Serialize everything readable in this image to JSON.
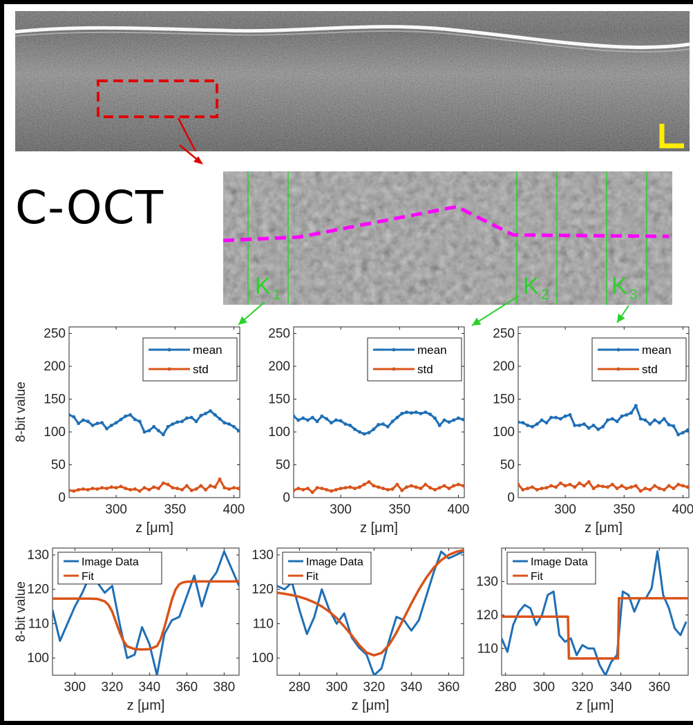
{
  "title": "C-OCT",
  "markers": [
    {
      "letter": "K",
      "sub": "1"
    },
    {
      "letter": "K",
      "sub": "2"
    },
    {
      "letter": "K",
      "sub": "3"
    }
  ],
  "colors": {
    "mean": "#1f6fb5",
    "std": "#d95319",
    "fit": "#d95319",
    "data": "#1f6fb5",
    "marker": "#2bd12b",
    "roi": "#e00000",
    "path": "#ff00ff",
    "scalebar": "#ffee00"
  },
  "chart_data": [
    {
      "type": "line",
      "xlabel": "z [μm]",
      "ylabel": "8-bit value",
      "xlim": [
        260,
        405
      ],
      "ylim": [
        0,
        260
      ],
      "xticks": [
        300,
        350,
        400
      ],
      "yticks": [
        0,
        50,
        100,
        150,
        200,
        250
      ],
      "legend": "top-right",
      "series": [
        {
          "name": "mean",
          "x": [
            260,
            264,
            268,
            272,
            276,
            280,
            284,
            288,
            292,
            296,
            300,
            304,
            308,
            312,
            316,
            320,
            324,
            328,
            332,
            336,
            340,
            344,
            348,
            352,
            356,
            360,
            364,
            368,
            372,
            376,
            380,
            384,
            388,
            392,
            396,
            400,
            404
          ],
          "y": [
            126,
            123,
            113,
            118,
            116,
            110,
            113,
            114,
            105,
            110,
            114,
            119,
            124,
            126,
            119,
            116,
            100,
            102,
            108,
            102,
            96,
            108,
            112,
            115,
            116,
            121,
            122,
            116,
            125,
            128,
            132,
            126,
            120,
            114,
            112,
            108,
            102
          ]
        },
        {
          "name": "std",
          "x": [
            260,
            264,
            268,
            272,
            276,
            280,
            284,
            288,
            292,
            296,
            300,
            304,
            308,
            312,
            316,
            320,
            324,
            328,
            332,
            336,
            340,
            344,
            348,
            352,
            356,
            360,
            364,
            368,
            372,
            376,
            380,
            384,
            388,
            392,
            396,
            400,
            404
          ],
          "y": [
            11,
            10,
            12,
            13,
            12,
            14,
            13,
            15,
            14,
            16,
            15,
            17,
            14,
            12,
            13,
            10,
            15,
            12,
            16,
            14,
            22,
            20,
            15,
            14,
            12,
            18,
            11,
            13,
            18,
            12,
            18,
            16,
            28,
            15,
            13,
            15,
            14
          ]
        }
      ]
    },
    {
      "type": "line",
      "xlabel": "z [μm]",
      "ylabel": "",
      "xlim": [
        260,
        405
      ],
      "ylim": [
        0,
        260
      ],
      "xticks": [
        300,
        350,
        400
      ],
      "yticks": [
        0,
        50,
        100,
        150,
        200,
        250
      ],
      "legend": "top-right",
      "series": [
        {
          "name": "mean",
          "x": [
            260,
            264,
            268,
            272,
            276,
            280,
            284,
            288,
            292,
            296,
            300,
            304,
            308,
            312,
            316,
            320,
            324,
            328,
            332,
            336,
            340,
            344,
            348,
            352,
            356,
            360,
            364,
            368,
            372,
            376,
            380,
            384,
            388,
            392,
            396,
            400,
            404
          ],
          "y": [
            124,
            118,
            121,
            118,
            122,
            116,
            124,
            120,
            114,
            118,
            117,
            112,
            110,
            104,
            100,
            97,
            99,
            104,
            111,
            112,
            108,
            116,
            122,
            128,
            130,
            129,
            130,
            128,
            130,
            127,
            121,
            110,
            118,
            115,
            118,
            121,
            119
          ]
        },
        {
          "name": "std",
          "x": [
            260,
            264,
            268,
            272,
            276,
            280,
            284,
            288,
            292,
            296,
            300,
            304,
            308,
            312,
            316,
            320,
            324,
            328,
            332,
            336,
            340,
            344,
            348,
            352,
            356,
            360,
            364,
            368,
            372,
            376,
            380,
            384,
            388,
            392,
            396,
            400,
            404
          ],
          "y": [
            11,
            14,
            12,
            14,
            8,
            15,
            14,
            12,
            10,
            12,
            14,
            15,
            16,
            14,
            16,
            20,
            24,
            18,
            16,
            14,
            12,
            13,
            20,
            11,
            16,
            18,
            16,
            14,
            20,
            15,
            12,
            15,
            18,
            14,
            18,
            20,
            18
          ]
        }
      ]
    },
    {
      "type": "line",
      "xlabel": "z [μm]",
      "ylabel": "",
      "xlim": [
        260,
        405
      ],
      "ylim": [
        0,
        260
      ],
      "xticks": [
        300,
        350,
        400
      ],
      "yticks": [
        0,
        50,
        100,
        150,
        200,
        250
      ],
      "legend": "top-right",
      "series": [
        {
          "name": "mean",
          "x": [
            260,
            264,
            268,
            272,
            276,
            280,
            284,
            288,
            292,
            296,
            300,
            304,
            308,
            312,
            316,
            320,
            324,
            328,
            332,
            336,
            340,
            344,
            348,
            352,
            356,
            360,
            364,
            368,
            372,
            376,
            380,
            384,
            388,
            392,
            396,
            400,
            404
          ],
          "y": [
            115,
            114,
            110,
            108,
            112,
            118,
            114,
            122,
            122,
            120,
            124,
            126,
            110,
            110,
            112,
            106,
            110,
            104,
            108,
            118,
            120,
            116,
            124,
            126,
            129,
            140,
            120,
            118,
            112,
            118,
            114,
            120,
            111,
            109,
            96,
            99,
            103
          ]
        },
        {
          "name": "std",
          "x": [
            260,
            264,
            268,
            272,
            276,
            280,
            284,
            288,
            292,
            296,
            300,
            304,
            308,
            312,
            316,
            320,
            324,
            328,
            332,
            336,
            340,
            344,
            348,
            352,
            356,
            360,
            364,
            368,
            372,
            376,
            380,
            384,
            388,
            392,
            396,
            400,
            404
          ],
          "y": [
            20,
            12,
            14,
            16,
            12,
            14,
            15,
            18,
            16,
            22,
            18,
            20,
            16,
            22,
            18,
            24,
            14,
            18,
            17,
            16,
            20,
            14,
            18,
            14,
            16,
            18,
            10,
            14,
            12,
            18,
            14,
            12,
            18,
            14,
            20,
            18,
            16
          ]
        }
      ]
    },
    {
      "type": "line",
      "xlabel": "z [μm]",
      "ylabel": "8-bit value",
      "xlim": [
        288,
        388
      ],
      "ylim": [
        95,
        132
      ],
      "xticks": [
        300,
        320,
        340,
        360,
        380
      ],
      "yticks": [
        100,
        110,
        120,
        130
      ],
      "legend": "top-left",
      "series": [
        {
          "name": "Image Data",
          "x": [
            288,
            292,
            296,
            300,
            304,
            308,
            312,
            316,
            320,
            324,
            328,
            332,
            336,
            340,
            344,
            348,
            352,
            356,
            360,
            364,
            368,
            372,
            376,
            380,
            384,
            388
          ],
          "y": [
            114,
            105,
            110,
            115,
            119,
            124,
            122,
            119,
            121,
            110,
            100,
            101,
            109,
            104,
            95,
            107,
            111,
            112,
            118,
            124,
            115,
            122,
            125,
            131,
            126,
            121
          ]
        },
        {
          "name": "Fit",
          "x": [
            288,
            292,
            296,
            300,
            304,
            308,
            312,
            316,
            318,
            320,
            322,
            324,
            326,
            328,
            332,
            336,
            340,
            344,
            346,
            348,
            350,
            352,
            354,
            356,
            358,
            360,
            364,
            368,
            372,
            376,
            380,
            384,
            388
          ],
          "y": [
            117.3,
            117.3,
            117.3,
            117.3,
            117.3,
            117.3,
            117.2,
            116.5,
            115.5,
            113.5,
            110.5,
            107.5,
            105,
            103.4,
            102.6,
            102.5,
            102.6,
            103.5,
            105.5,
            109,
            113,
            117,
            120,
            121.5,
            122,
            122.2,
            122.3,
            122.3,
            122.3,
            122.3,
            122.3,
            122.3,
            122.3
          ]
        }
      ]
    },
    {
      "type": "line",
      "xlabel": "z [μm]",
      "ylabel": "",
      "xlim": [
        268,
        368
      ],
      "ylim": [
        95,
        132
      ],
      "xticks": [
        280,
        300,
        320,
        340,
        360
      ],
      "yticks": [
        100,
        110,
        120,
        130
      ],
      "legend": "top-left",
      "series": [
        {
          "name": "Image Data",
          "x": [
            268,
            272,
            276,
            280,
            284,
            288,
            292,
            296,
            300,
            304,
            308,
            312,
            316,
            320,
            324,
            328,
            332,
            336,
            340,
            344,
            348,
            352,
            356,
            360,
            364,
            368
          ],
          "y": [
            121,
            120,
            122,
            114,
            107,
            112,
            120,
            114,
            110,
            113,
            106,
            103,
            101,
            95,
            97,
            105,
            112,
            111,
            108,
            111,
            118,
            125,
            131,
            129,
            130,
            131
          ]
        },
        {
          "name": "Fit",
          "x": [
            268,
            272,
            276,
            280,
            284,
            288,
            292,
            296,
            300,
            304,
            308,
            312,
            316,
            320,
            324,
            328,
            332,
            336,
            340,
            344,
            348,
            352,
            356,
            360,
            364,
            368
          ],
          "y": [
            119,
            118.7,
            118.3,
            117.8,
            117.1,
            116.2,
            115,
            113.5,
            111.6,
            109.2,
            106.6,
            103.8,
            101.6,
            100.8,
            101.5,
            103.8,
            107.4,
            111.6,
            115.9,
            119.9,
            123.4,
            126.3,
            128.5,
            130,
            130.9,
            131.4
          ]
        }
      ]
    },
    {
      "type": "line",
      "xlabel": "z [μm]",
      "ylabel": "",
      "xlim": [
        278,
        375
      ],
      "ylim": [
        102,
        140
      ],
      "xticks": [
        280,
        300,
        320,
        340,
        360
      ],
      "yticks": [
        110,
        120,
        130
      ],
      "legend": "top-left",
      "series": [
        {
          "name": "Image Data",
          "x": [
            278,
            281,
            284,
            287,
            290,
            293,
            296,
            299,
            302,
            305,
            308,
            311,
            314,
            317,
            320,
            323,
            326,
            329,
            332,
            335,
            338,
            341,
            344,
            347,
            350,
            353,
            356,
            359,
            362,
            365,
            368,
            371,
            374
          ],
          "y": [
            113,
            109,
            117,
            121,
            123,
            122,
            117,
            120,
            126,
            127,
            114,
            112,
            113,
            108,
            111,
            110,
            110,
            105,
            102,
            106,
            108,
            127,
            126,
            121,
            125,
            125,
            128,
            139,
            126,
            122,
            116,
            114,
            118
          ]
        },
        {
          "name": "Fit",
          "x": [
            278,
            312.5,
            313,
            338.5,
            339,
            375
          ],
          "y": [
            119.5,
            119.5,
            107,
            107,
            125,
            125
          ]
        }
      ]
    }
  ]
}
